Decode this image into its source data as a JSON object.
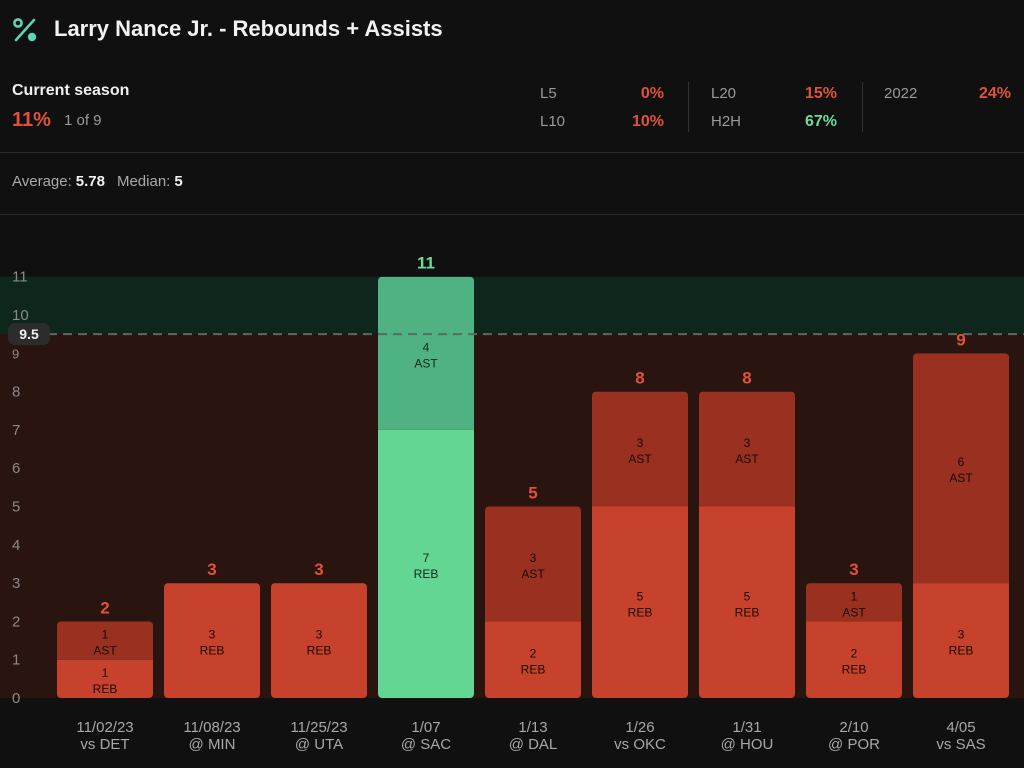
{
  "header": {
    "title": "Larry Nance Jr. - Rebounds + Assists",
    "icon": "percent-icon",
    "icon_color": "#5fd3b5"
  },
  "summary": {
    "season_label": "Current season",
    "season_pct": "11%",
    "season_count": "1 of 9",
    "stats": [
      {
        "label": "L5",
        "value": "0%",
        "color": "#e0523a"
      },
      {
        "label": "L10",
        "value": "10%",
        "color": "#e0523a"
      },
      {
        "label": "L20",
        "value": "15%",
        "color": "#e0523a"
      },
      {
        "label": "H2H",
        "value": "67%",
        "color": "#6ddc9a"
      },
      {
        "label": "2022",
        "value": "24%",
        "color": "#e0523a"
      }
    ],
    "average_label": "Average:",
    "average_value": "5.78",
    "median_label": "Median:",
    "median_value": "5"
  },
  "colors": {
    "miss_reb": "#c7422c",
    "miss_ast": "#9a3020",
    "hit_reb": "#63d694",
    "hit_ast": "#4fb283",
    "miss_label": "#e0523a",
    "hit_label": "#6ddc9a"
  },
  "chart_data": {
    "type": "bar",
    "stacked": true,
    "line": 9.5,
    "line_label": "9.5",
    "ylim": [
      0,
      11
    ],
    "yticks": [
      "0",
      "1",
      "2",
      "3",
      "4",
      "5",
      "6",
      "7",
      "8",
      "9",
      "10",
      "11"
    ],
    "categories": [
      {
        "date": "11/02/23",
        "opp": "vs DET"
      },
      {
        "date": "11/08/23",
        "opp": "@ MIN"
      },
      {
        "date": "11/25/23",
        "opp": "@ UTA"
      },
      {
        "date": "1/07",
        "opp": "@ SAC"
      },
      {
        "date": "1/13",
        "opp": "@ DAL"
      },
      {
        "date": "1/26",
        "opp": "vs OKC"
      },
      {
        "date": "1/31",
        "opp": "@ HOU"
      },
      {
        "date": "2/10",
        "opp": "@ POR"
      },
      {
        "date": "4/05",
        "opp": "vs SAS"
      }
    ],
    "series": [
      {
        "name": "REB",
        "values": [
          1,
          3,
          3,
          7,
          2,
          5,
          5,
          2,
          3
        ]
      },
      {
        "name": "AST",
        "values": [
          1,
          0,
          0,
          4,
          3,
          3,
          3,
          1,
          6
        ]
      }
    ],
    "totals": [
      2,
      3,
      3,
      11,
      5,
      8,
      8,
      3,
      9
    ]
  }
}
